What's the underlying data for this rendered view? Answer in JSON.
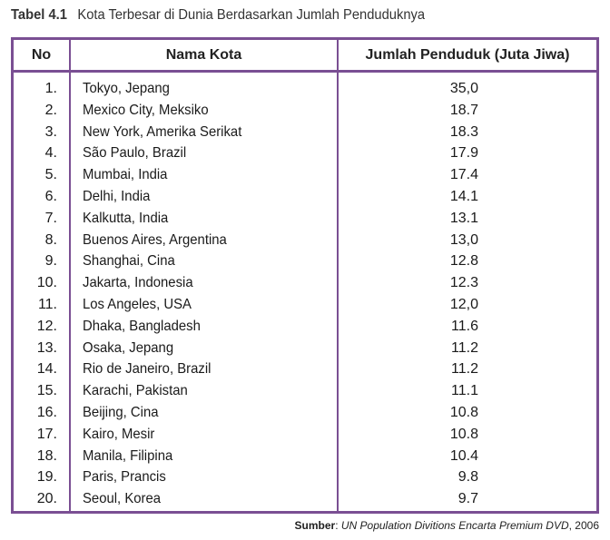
{
  "caption": {
    "number": "Tabel 4.1",
    "title": "Kota Terbesar di Dunia Berdasarkan Jumlah Penduduknya"
  },
  "headers": {
    "no": "No",
    "name": "Nama Kota",
    "population": "Jumlah Penduduk (Juta Jiwa)"
  },
  "rows": [
    {
      "no": "1.",
      "name": "Tokyo, Jepang",
      "population": "35,0"
    },
    {
      "no": "2.",
      "name": "Mexico City, Meksiko",
      "population": "18.7"
    },
    {
      "no": "3.",
      "name": "New York, Amerika Serikat",
      "population": "18.3"
    },
    {
      "no": "4.",
      "name": "São Paulo, Brazil",
      "population": "17.9"
    },
    {
      "no": "5.",
      "name": "Mumbai, India",
      "population": "17.4"
    },
    {
      "no": "6.",
      "name": "Delhi, India",
      "population": "14.1"
    },
    {
      "no": "7.",
      "name": "Kalkutta, India",
      "population": "13.1"
    },
    {
      "no": "8.",
      "name": "Buenos Aires, Argentina",
      "population": "13,0"
    },
    {
      "no": "9.",
      "name": "Shanghai, Cina",
      "population": "12.8"
    },
    {
      "no": "10.",
      "name": "Jakarta, Indonesia",
      "population": "12.3"
    },
    {
      "no": "11.",
      "name": "Los Angeles, USA",
      "population": "12,0"
    },
    {
      "no": "12.",
      "name": "Dhaka, Bangladesh",
      "population": "11.6"
    },
    {
      "no": "13.",
      "name": "Osaka, Jepang",
      "population": "11.2"
    },
    {
      "no": "14.",
      "name": "Rio de Janeiro, Brazil",
      "population": "11.2"
    },
    {
      "no": "15.",
      "name": "Karachi, Pakistan",
      "population": "11.1"
    },
    {
      "no": "16.",
      "name": "Beijing, Cina",
      "population": "10.8"
    },
    {
      "no": "17.",
      "name": "Kairo, Mesir",
      "population": "10.8"
    },
    {
      "no": "18.",
      "name": "Manila, Filipina",
      "population": "10.4"
    },
    {
      "no": "19.",
      "name": "Paris, Prancis",
      "population": "9.8"
    },
    {
      "no": "20.",
      "name": "Seoul, Korea",
      "population": "9.7"
    }
  ],
  "source": {
    "label": "Sumber",
    "text": "UN Population Divitions Encarta Premium DVD",
    "year": "2006"
  },
  "colors": {
    "border": "#7a4f93"
  }
}
